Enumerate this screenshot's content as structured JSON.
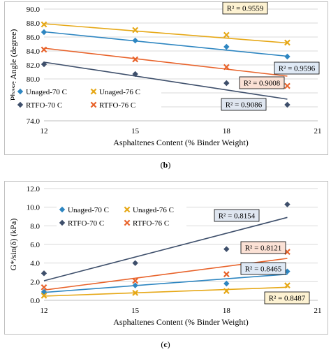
{
  "captions": [
    {
      "open": "(",
      "letter": "b",
      "close": ")"
    },
    {
      "open": "(",
      "letter": "c",
      "close": ")"
    }
  ],
  "chart_data": [
    {
      "type": "scatter",
      "title": "",
      "xlabel": "Asphaltenes Content (% Binder Weight)",
      "ylabel": "Phase Angle (degree)",
      "xlim": [
        12,
        21
      ],
      "ylim": [
        74,
        90
      ],
      "xticks": [
        "12",
        "15",
        "18",
        "21"
      ],
      "yticks": [
        "74.0",
        "76.0",
        "78.0",
        "80.0",
        "82.0",
        "84.0",
        "86.0",
        "88.0",
        "90.0"
      ],
      "grid": "horizontal",
      "legend_placement": "bottom-left",
      "series": [
        {
          "name": "Unaged-70 C",
          "color": "#2e86c1",
          "marker": "diamond",
          "x": [
            12,
            15,
            18,
            20
          ],
          "y": [
            86.7,
            85.5,
            84.6,
            83.2
          ],
          "fit": [
            86.75,
            83.25
          ],
          "r2": "R² = 0.9596"
        },
        {
          "name": "Unaged-76 C",
          "color": "#e6a817",
          "marker": "x",
          "x": [
            12,
            15,
            18,
            20
          ],
          "y": [
            87.8,
            87.0,
            86.3,
            85.2
          ],
          "fit": [
            87.9,
            85.15
          ],
          "r2": "R² = 0.9559"
        },
        {
          "name": "RTFO-70 C",
          "color": "#3e4f6b",
          "marker": "diamond",
          "x": [
            12,
            15,
            18,
            20
          ],
          "y": [
            82.1,
            80.7,
            79.4,
            76.3
          ],
          "fit": [
            82.4,
            77.1
          ],
          "r2": "R² = 0.9086"
        },
        {
          "name": "RTFO-76 C",
          "color": "#e8632b",
          "marker": "x",
          "x": [
            12,
            15,
            18,
            20
          ],
          "y": [
            84.2,
            82.8,
            81.7,
            79.0
          ],
          "fit": [
            84.4,
            80.4
          ],
          "r2": "R² = 0.9008"
        }
      ]
    },
    {
      "type": "scatter",
      "title": "",
      "xlabel": "Asphaltenes Content (% Binder Weight)",
      "ylabel": "G*/sin(δ) (kPa)",
      "xlim": [
        12,
        21
      ],
      "ylim": [
        0,
        12
      ],
      "xticks": [
        "12",
        "15",
        "18",
        "21"
      ],
      "yticks": [
        "0.0",
        "2.0",
        "4.0",
        "6.0",
        "8.0",
        "10.0",
        "12.0"
      ],
      "grid": "horizontal",
      "legend_placement": "top-left",
      "series": [
        {
          "name": "Unaged-70 C",
          "color": "#2e86c1",
          "marker": "diamond",
          "x": [
            12,
            15,
            18,
            20
          ],
          "y": [
            0.9,
            1.6,
            1.8,
            3.1
          ],
          "fit": [
            0.85,
            2.8
          ],
          "r2": "R² = 0.8465"
        },
        {
          "name": "Unaged-76 C",
          "color": "#e6a817",
          "marker": "x",
          "x": [
            12,
            15,
            18,
            20
          ],
          "y": [
            0.5,
            0.8,
            1.0,
            1.6
          ],
          "fit": [
            0.45,
            1.4
          ],
          "r2": "R² = 0.8487"
        },
        {
          "name": "RTFO-70 C",
          "color": "#3e4f6b",
          "marker": "diamond",
          "x": [
            12,
            15,
            18,
            20
          ],
          "y": [
            2.9,
            4.0,
            5.5,
            10.3
          ],
          "fit": [
            2.1,
            8.9
          ],
          "r2": "R² = 0.8154"
        },
        {
          "name": "RTFO-76 C",
          "color": "#e8632b",
          "marker": "x",
          "x": [
            12,
            15,
            18,
            20
          ],
          "y": [
            1.4,
            2.1,
            2.8,
            5.2
          ],
          "fit": [
            1.1,
            4.5
          ],
          "r2": "R² = 0.8121"
        }
      ]
    }
  ]
}
